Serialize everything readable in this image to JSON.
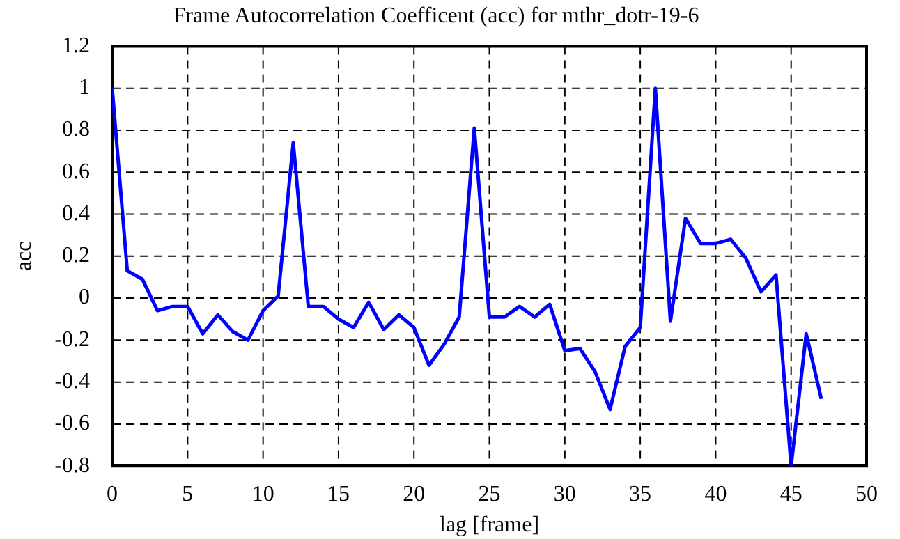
{
  "chart_data": {
    "type": "line",
    "title": "Frame Autocorrelation Coefficent (acc) for mthr_dotr-19-6",
    "xlabel": "lag [frame]",
    "ylabel": "acc",
    "x": [
      0,
      1,
      2,
      3,
      4,
      5,
      6,
      7,
      8,
      9,
      10,
      11,
      12,
      13,
      14,
      15,
      16,
      17,
      18,
      19,
      20,
      21,
      22,
      23,
      24,
      25,
      26,
      27,
      28,
      29,
      30,
      31,
      32,
      33,
      34,
      35,
      36,
      37,
      38,
      39,
      40,
      41,
      42,
      43,
      44,
      45,
      46,
      47
    ],
    "series": [
      {
        "color": "#0000ff",
        "values": [
          1,
          0.13,
          0.09,
          -0.06,
          -0.04,
          -0.04,
          -0.17,
          -0.08,
          -0.16,
          -0.2,
          -0.06,
          0.01,
          0.74,
          -0.04,
          -0.04,
          -0.1,
          -0.14,
          -0.02,
          -0.15,
          -0.08,
          -0.14,
          -0.32,
          -0.22,
          -0.09,
          0.81,
          -0.09,
          -0.09,
          -0.04,
          -0.09,
          -0.03,
          -0.25,
          -0.24,
          -0.35,
          -0.53,
          -0.23,
          -0.14,
          1.0,
          -0.11,
          0.38,
          0.26,
          0.26,
          0.28,
          0.19,
          0.03,
          0.11,
          -0.8,
          -0.17,
          -0.48
        ]
      }
    ],
    "xlim": [
      0,
      50
    ],
    "xticks": [
      0,
      5,
      10,
      15,
      20,
      25,
      30,
      35,
      40,
      45,
      50
    ],
    "ylim": [
      -0.8,
      1.2
    ],
    "yticks": [
      -0.8,
      -0.6,
      -0.4,
      -0.2,
      0,
      0.2,
      0.4,
      0.6,
      0.8,
      1,
      1.2
    ],
    "grid": true,
    "legend": false,
    "marker": "none",
    "line_style": "solid"
  }
}
